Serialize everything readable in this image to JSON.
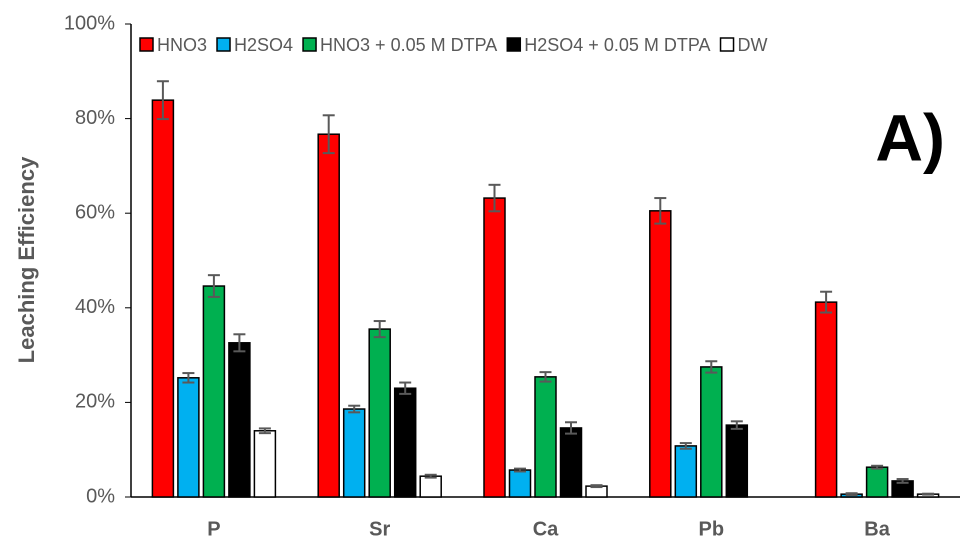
{
  "chart_data": {
    "type": "bar",
    "annotation": "A)",
    "y_label": "Leaching Efficiency",
    "categories": [
      "P",
      "Sr",
      "Ca",
      "Pb",
      "Ba"
    ],
    "series": [
      {
        "name": "HNO3",
        "color": "#ff0000",
        "values": [
          83.9,
          76.7,
          63.2,
          60.5,
          41.2
        ],
        "errors": [
          4,
          4,
          2.8,
          2.7,
          2.2
        ]
      },
      {
        "name": "H2SO4",
        "color": "#00b0f0",
        "values": [
          25.2,
          18.6,
          5.7,
          10.8,
          0.6
        ],
        "errors": [
          1,
          0.7,
          0.3,
          0.6,
          0.2
        ]
      },
      {
        "name": "HNO3 + 0.05 M DTPA",
        "color": "#00b050",
        "values": [
          44.6,
          35.5,
          25.4,
          27.5,
          6.3
        ],
        "errors": [
          2.3,
          1.7,
          1,
          1.2,
          0.3
        ]
      },
      {
        "name": "H2SO4 + 0.05 M DTPA",
        "color": "#000000",
        "values": [
          32.6,
          23.0,
          14.6,
          15.2,
          3.4
        ],
        "errors": [
          1.8,
          1.2,
          1.2,
          0.8,
          0.4
        ]
      },
      {
        "name": "DW",
        "color": "#ffffff",
        "values": [
          14.0,
          4.4,
          2.3,
          null,
          0.6
        ],
        "errors": [
          0.5,
          0.3,
          0.2,
          null,
          0.1
        ]
      }
    ],
    "ylim": [
      0,
      100
    ],
    "yticks": [
      {
        "value": 0,
        "label": "0%"
      },
      {
        "value": 20,
        "label": "20%"
      },
      {
        "value": 40,
        "label": "40%"
      },
      {
        "value": 60,
        "label": "60%"
      },
      {
        "value": 80,
        "label": "80%"
      },
      {
        "value": 100,
        "label": "100%"
      }
    ],
    "grid": false
  }
}
